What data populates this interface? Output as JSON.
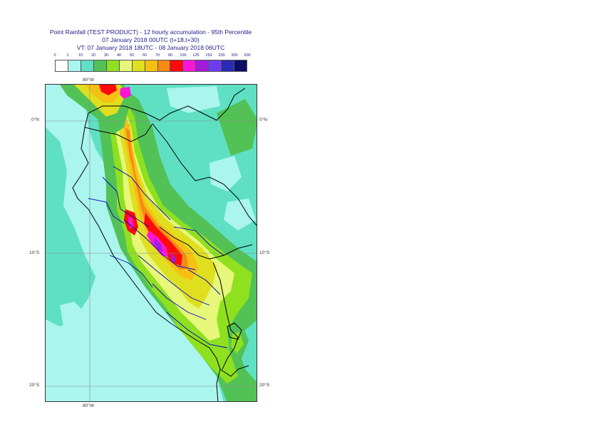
{
  "title": {
    "line1": "Point Rainfall (TEST PRODUCT) - 12 hourly accumulation - 95th Percentile",
    "line2": "07 January 2018 00UTC (t+18,t+30)",
    "line3": "VT: 07 January 2018 18UTC - 08 January 2018 06UTC"
  },
  "legend": {
    "ticks": [
      "0",
      "1",
      "10",
      "20",
      "30",
      "40",
      "50",
      "60",
      "70",
      "80",
      "100",
      "125",
      "150",
      "200",
      "300",
      "500"
    ],
    "colors": [
      "#ffffff",
      "#aaf5ee",
      "#5fe0c3",
      "#52c257",
      "#8fe01f",
      "#e6f779",
      "#e0df1f",
      "#f7bf14",
      "#f78a14",
      "#ff0a0a",
      "#ff14d8",
      "#a31cd9",
      "#6e3df2",
      "#2a2ab3",
      "#0d0d66"
    ]
  },
  "map": {
    "lon_labels": {
      "top": "80°W",
      "bottom": "80°W"
    },
    "lat_labels": {
      "left": [
        "0°N",
        "10°S",
        "20°S"
      ],
      "right": [
        "0°N",
        "10°S",
        "20°S"
      ]
    },
    "colors": {
      "ocean_light": "#aaf5ee",
      "base": "#5fe0c3",
      "green": "#52c257",
      "lime": "#8fe01f",
      "pale_yellow": "#e6f779",
      "yellow": "#e0df1f",
      "orange": "#f7bf14",
      "dark_orange": "#f78a14",
      "red": "#ff0a0a",
      "magenta": "#ff14d8",
      "purple": "#a31cd9",
      "violet": "#6e3df2",
      "country_border": "#000000",
      "region_border": "#0000cc",
      "gridline": "#888888"
    }
  }
}
